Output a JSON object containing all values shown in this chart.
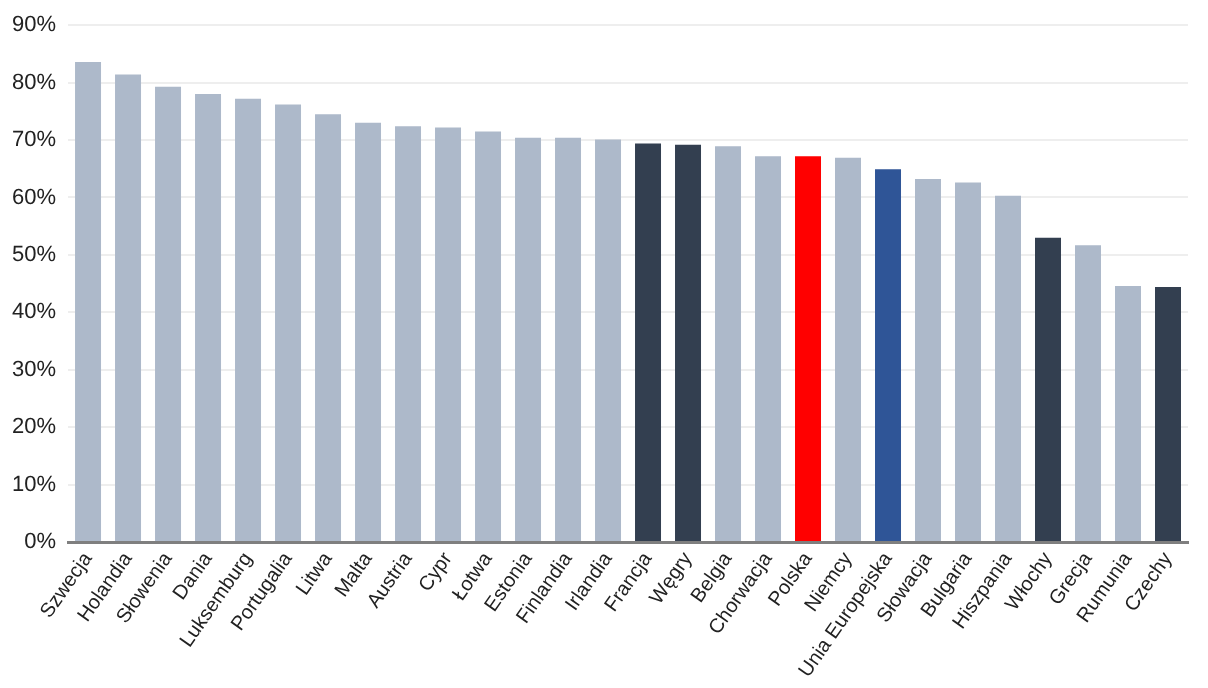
{
  "chart_data": {
    "type": "bar",
    "categories": [
      "Szwecja",
      "Holandia",
      "Słowenia",
      "Dania",
      "Luksemburg",
      "Portugalia",
      "Litwa",
      "Malta",
      "Austria",
      "Cypr",
      "Łotwa",
      "Estonia",
      "Finlandia",
      "Irlandia",
      "Francja",
      "Węgry",
      "Belgia",
      "Chorwacja",
      "Polska",
      "Niemcy",
      "Unia Europejska",
      "Słowacja",
      "Bulgaria",
      "Hiszpania",
      "Włochy",
      "Grecja",
      "Rumunia",
      "Czechy"
    ],
    "values": [
      83.6,
      81.4,
      79.3,
      78,
      77.2,
      76.2,
      74.5,
      73,
      72.4,
      72.2,
      71.5,
      70.4,
      70.4,
      70.1,
      69.4,
      69.2,
      68.9,
      67.2,
      67.2,
      66.9,
      64.9,
      63.2,
      62.6,
      60.3,
      53,
      51.7,
      44.6,
      44.4
    ],
    "colors": [
      "#adb9ca",
      "#adb9ca",
      "#adb9ca",
      "#adb9ca",
      "#adb9ca",
      "#adb9ca",
      "#adb9ca",
      "#adb9ca",
      "#adb9ca",
      "#adb9ca",
      "#adb9ca",
      "#adb9ca",
      "#adb9ca",
      "#adb9ca",
      "#333f50",
      "#333f50",
      "#adb9ca",
      "#adb9ca",
      "#ff0000",
      "#adb9ca",
      "#2f5597",
      "#adb9ca",
      "#adb9ca",
      "#adb9ca",
      "#333f50",
      "#adb9ca",
      "#adb9ca",
      "#333f50"
    ],
    "ylim": [
      0,
      90
    ],
    "yticks": [
      {
        "value": 0,
        "label": "0%"
      },
      {
        "value": 10,
        "label": "10%"
      },
      {
        "value": 20,
        "label": "20%"
      },
      {
        "value": 30,
        "label": "30%"
      },
      {
        "value": 40,
        "label": "40%"
      },
      {
        "value": 50,
        "label": "50%"
      },
      {
        "value": 60,
        "label": "60%"
      },
      {
        "value": 70,
        "label": "70%"
      },
      {
        "value": 80,
        "label": "80%"
      },
      {
        "value": 90,
        "label": "90%"
      }
    ],
    "grid": "y",
    "legend": false
  }
}
